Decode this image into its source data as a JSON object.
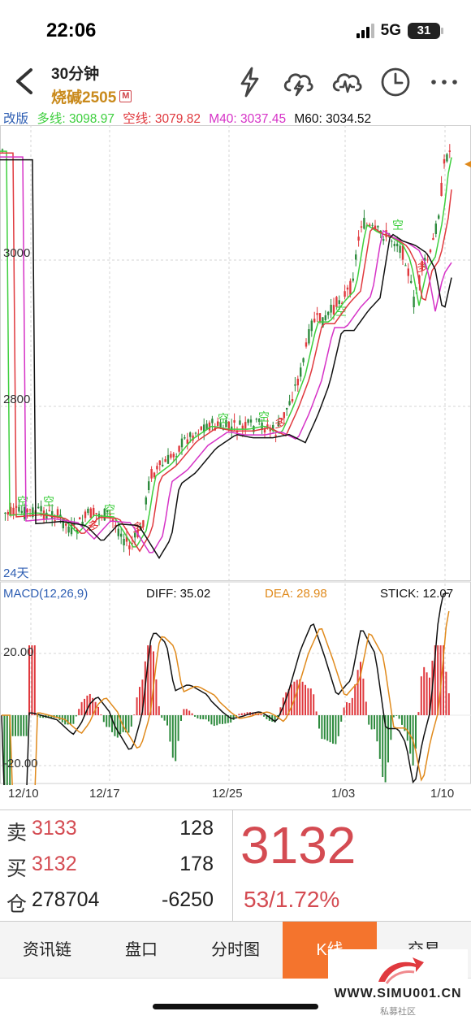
{
  "status_bar": {
    "time": "22:06",
    "network": "5G",
    "battery": "31"
  },
  "header": {
    "period": "30分钟",
    "contract": "烧碱2505",
    "badge": "M"
  },
  "icons": [
    "back-chevron-icon",
    "lightning-icon",
    "cloud-lightning-icon",
    "cloud-chart-icon",
    "clock-icon",
    "more-icon"
  ],
  "ma_legend": {
    "mode": "改版",
    "items": [
      {
        "text": "多线: 3098.97",
        "color": "#3ecf3e"
      },
      {
        "text": "空线: 3079.82",
        "color": "#e0393e"
      },
      {
        "text": "M40: 3037.45",
        "color": "#d633c7"
      },
      {
        "text": "M60: 3034.52",
        "color": "#111111"
      }
    ]
  },
  "chart_data": {
    "type": "candlestick",
    "price_ticks": [
      "3000",
      "2800"
    ],
    "period_label": "24天",
    "markers": [
      "空",
      "多"
    ],
    "macd": {
      "label": "MACD(12,26,9)",
      "diff": "DIFF: 35.02",
      "dea": "DEA: 28.98",
      "stick": "STICK: 12.07",
      "ticks": [
        "20.00",
        "-20.00"
      ]
    },
    "dates": [
      "12/10",
      "12/17",
      "12/25",
      "1/03",
      "1/10"
    ],
    "colors": {
      "up": "#e0393e",
      "down": "#2e8b3e",
      "diff_line": "#111111",
      "dea_line": "#e08a1c"
    }
  },
  "quote": {
    "sell_label": "卖",
    "sell_price": "3133",
    "sell_vol": "128",
    "buy_label": "买",
    "buy_price": "3132",
    "buy_vol": "178",
    "oi_label": "仓",
    "oi_value": "278704",
    "oi_change": "-6250",
    "last_price": "3132",
    "change": "53/1.72%"
  },
  "tabs": [
    "资讯链",
    "盘口",
    "分时图",
    "K线",
    "交易"
  ],
  "active_tab": "K线",
  "watermark": {
    "text": "WWW.SIMU001.CN",
    "sub": "私募社区"
  }
}
